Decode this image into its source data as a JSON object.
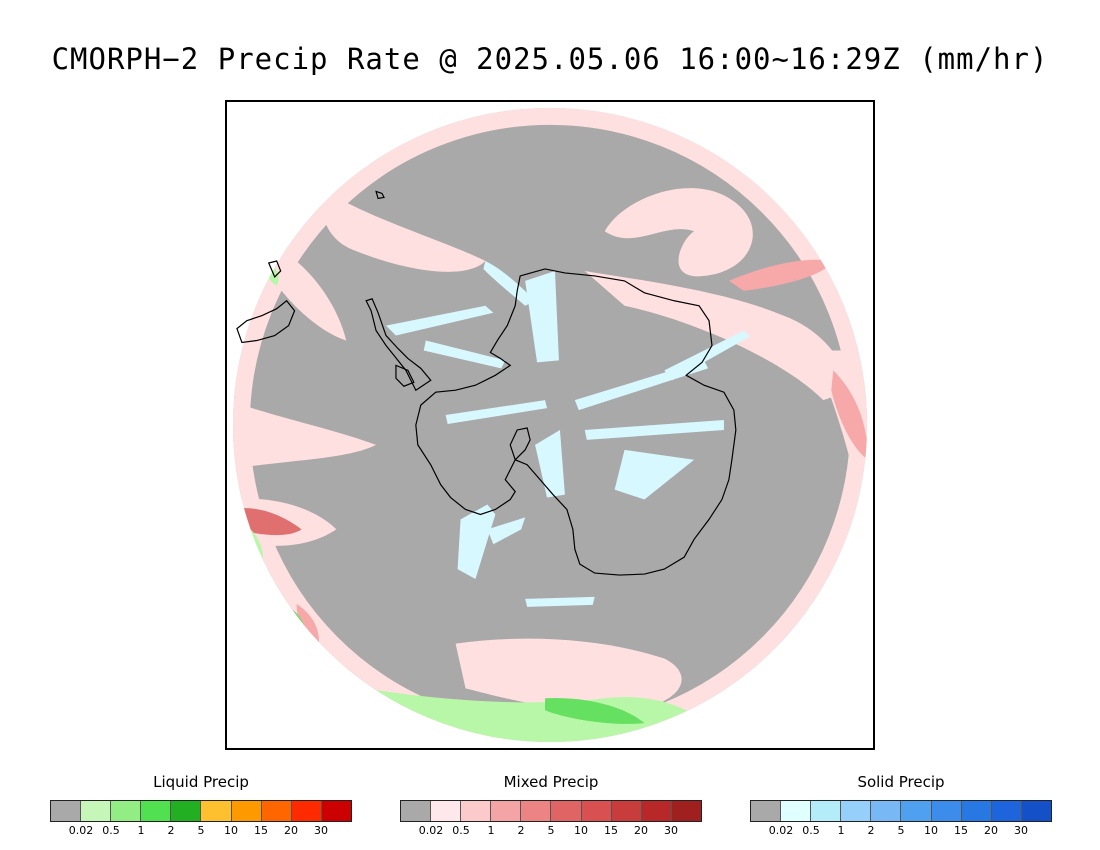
{
  "title": "CMORPH−2 Precip Rate @ 2025.05.06 16:00~16:29Z (mm/hr)",
  "map": {
    "projection": "south-polar-stereographic",
    "background_color": "#a9a9a9",
    "coastline_color": "#000000",
    "colors": {
      "no_data": "#ffffff",
      "mixed_light": "#ffe0e0",
      "mixed_mid": "#f7a8a8",
      "mixed_heavy": "#e07070",
      "liquid_light": "#b9f7a8",
      "liquid_mid": "#66e060",
      "liquid_heavy": "#21b021",
      "solid_light": "#d8f8ff"
    }
  },
  "legends": [
    {
      "title": "Liquid Precip",
      "colors": [
        "#a9a9a9",
        "#c6f7b8",
        "#91ed84",
        "#50e050",
        "#22b022",
        "#ffc030",
        "#ff9900",
        "#ff6600",
        "#ff2a00",
        "#cc0000"
      ],
      "ticks": [
        "0.02",
        "0.5",
        "1",
        "2",
        "5",
        "10",
        "15",
        "20",
        "30"
      ]
    },
    {
      "title": "Mixed Precip",
      "colors": [
        "#a9a9a9",
        "#ffe8ec",
        "#fccaca",
        "#f4a4a4",
        "#ec8484",
        "#e06464",
        "#d85050",
        "#c83c3c",
        "#b82828",
        "#a02020"
      ],
      "ticks": [
        "0.02",
        "0.5",
        "1",
        "2",
        "5",
        "10",
        "15",
        "20",
        "30"
      ]
    },
    {
      "title": "Solid Precip",
      "colors": [
        "#a9a9a9",
        "#e0ffff",
        "#b4ecfa",
        "#96d0fa",
        "#78b8f4",
        "#50a0f0",
        "#3c8cec",
        "#2878e4",
        "#1e64dc",
        "#1450c8"
      ],
      "ticks": [
        "0.02",
        "0.5",
        "1",
        "2",
        "5",
        "10",
        "15",
        "20",
        "30"
      ]
    }
  ]
}
